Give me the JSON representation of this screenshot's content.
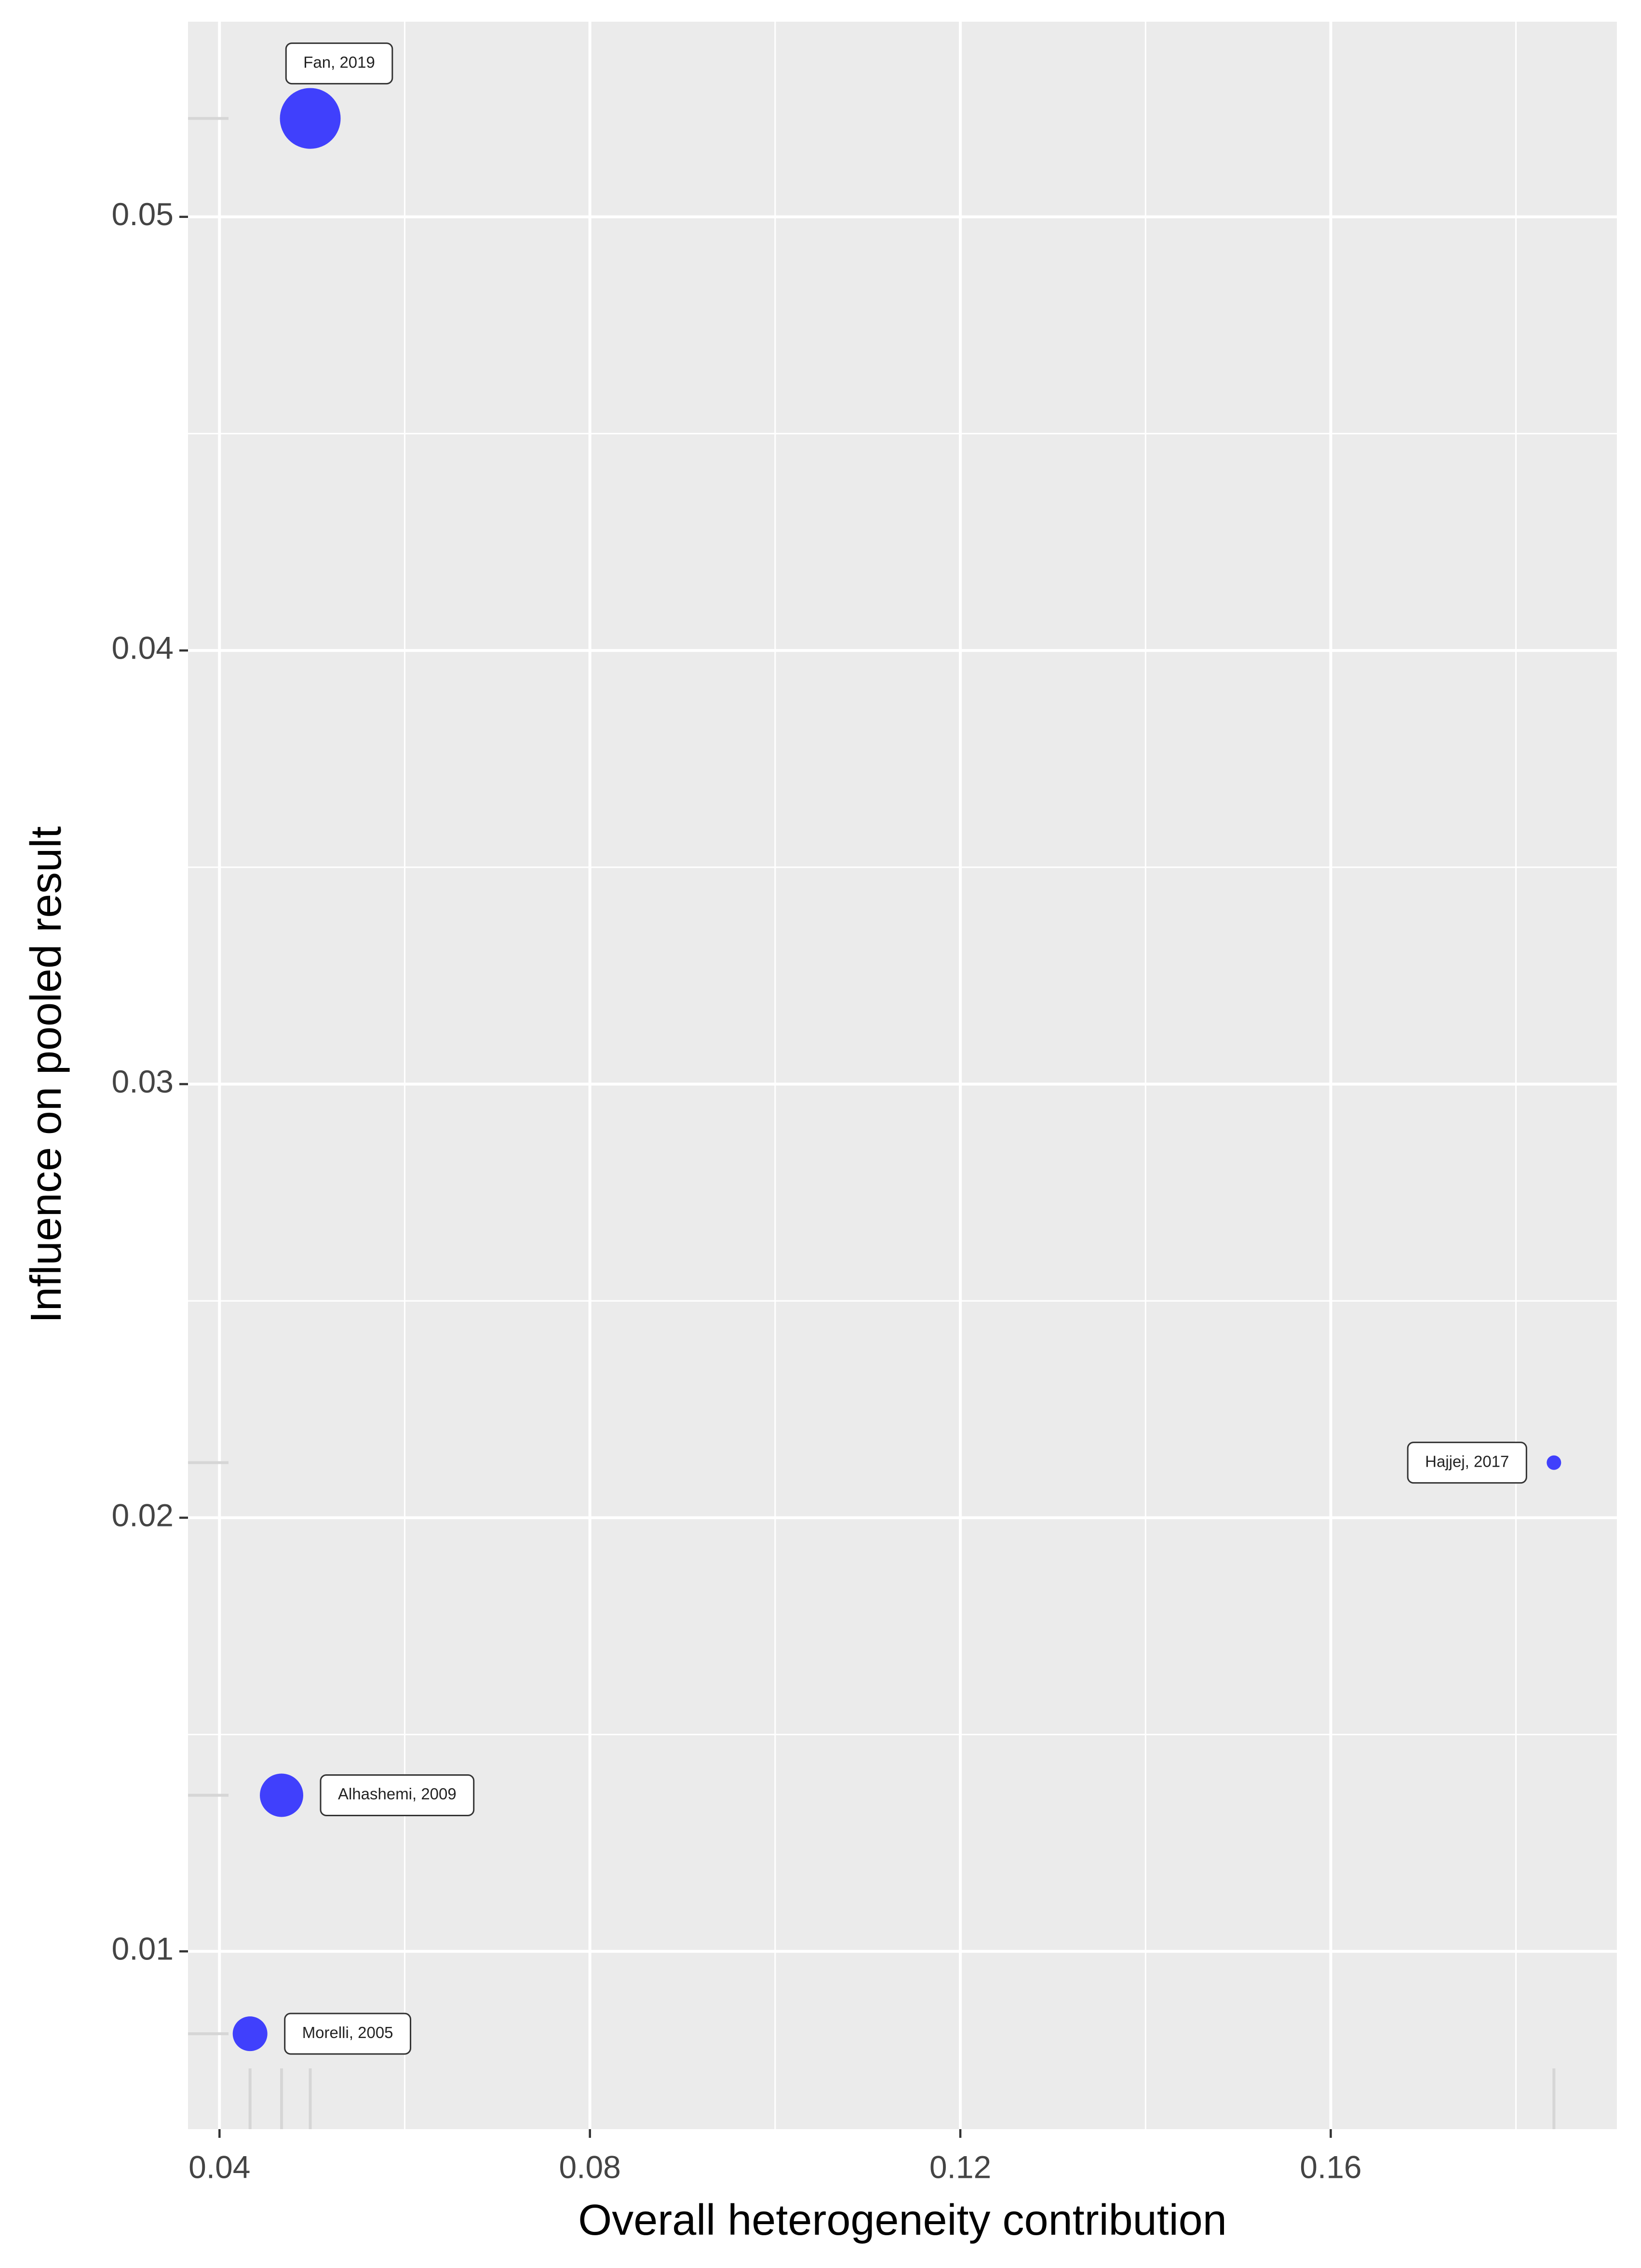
{
  "chart_data": {
    "type": "scatter",
    "x_label": "Overall heterogeneity contribution",
    "y_label": "Influence on pooled result",
    "labels": [
      "Fan, 2019",
      "Hajjej, 2017",
      "Alhashemi, 2009",
      "Morelli, 2005"
    ],
    "x": [
      0.0498,
      0.1841,
      0.0467,
      0.0433
    ],
    "values": [
      0.05227,
      0.02127,
      0.0136,
      0.0081
    ],
    "sizes": [
      21,
      5,
      15,
      12
    ],
    "color": "#2222ff",
    "xlim": [
      0.0366,
      0.1909
    ],
    "ylim": [
      0.0059,
      0.0545
    ],
    "xticks": [
      {
        "value": 0.04,
        "label": "0.04"
      },
      {
        "value": 0.08,
        "label": "0.08"
      },
      {
        "value": 0.12,
        "label": "0.12"
      },
      {
        "value": 0.16,
        "label": "0.16"
      }
    ],
    "yticks": [
      {
        "value": 0.01,
        "label": "0.01"
      },
      {
        "value": 0.02,
        "label": "0.02"
      },
      {
        "value": 0.03,
        "label": "0.03"
      },
      {
        "value": 0.04,
        "label": "0.04"
      },
      {
        "value": 0.05,
        "label": "0.05"
      }
    ],
    "x_minor": [
      0.06,
      0.1,
      0.14,
      0.18
    ],
    "y_minor": [
      0.015,
      0.025,
      0.035,
      0.045
    ],
    "grid": true,
    "rug": true
  }
}
